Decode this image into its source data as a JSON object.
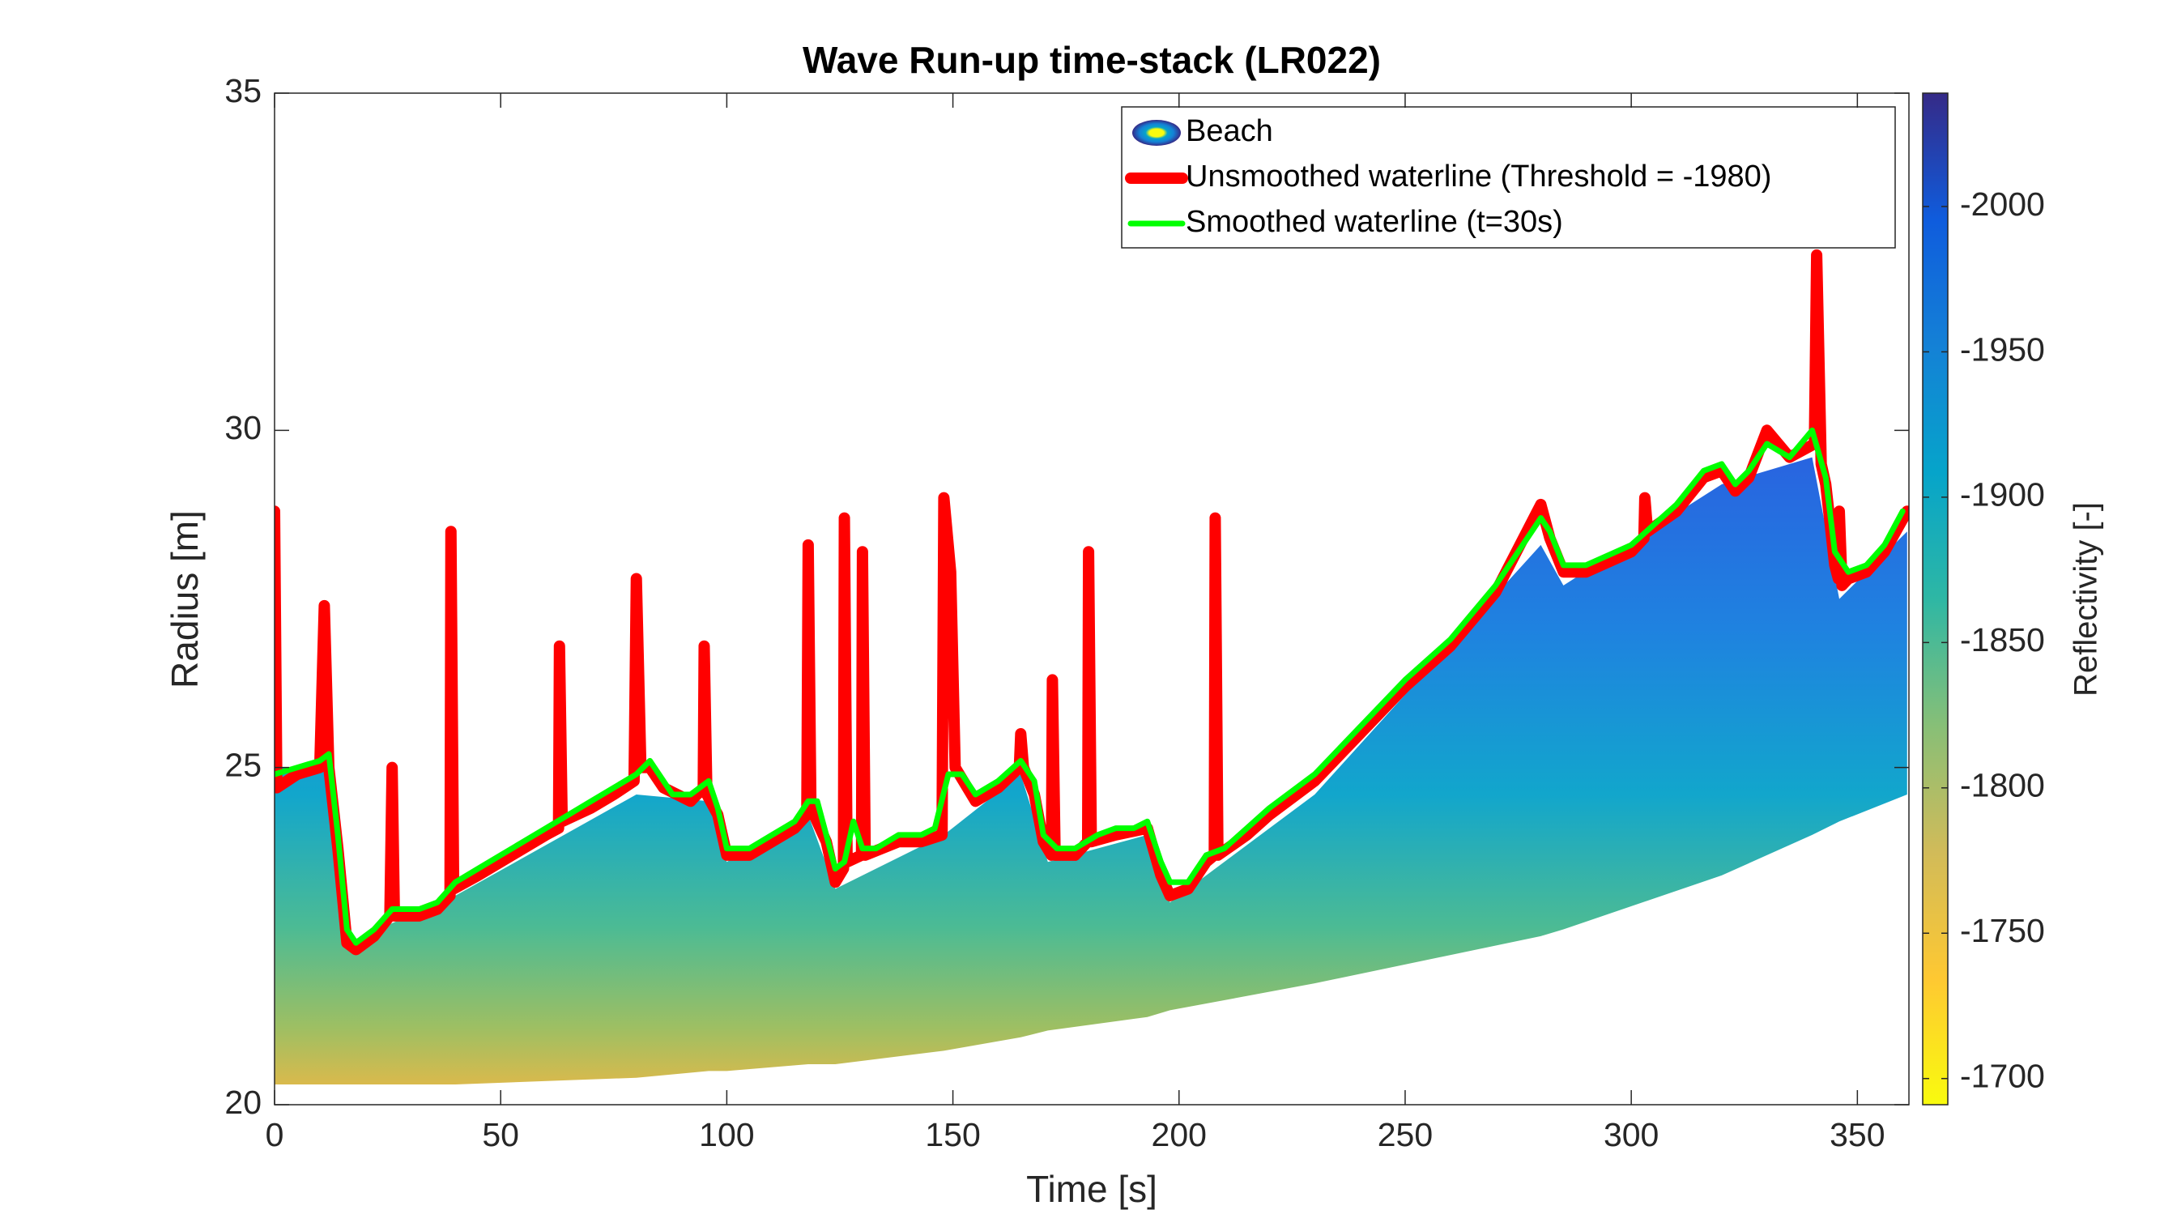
{
  "chart_data": {
    "type": "line",
    "title": "Wave Run-up time-stack (LR022)",
    "xlabel": "Time [s]",
    "ylabel": "Radius [m]",
    "xlim": [
      0,
      361.4
    ],
    "ylim": [
      20,
      35
    ],
    "xticks": [
      0,
      50,
      100,
      150,
      200,
      250,
      300,
      350
    ],
    "yticks": [
      20,
      25,
      30,
      35
    ],
    "legend": "upper right",
    "series": [
      {
        "name": "Beach",
        "type": "area",
        "color": "#2a64dc",
        "x": [
          0,
          12,
          16,
          40,
          80,
          96,
          100,
          118,
          124,
          148,
          165,
          171,
          193,
          198,
          230,
          280,
          285,
          320,
          340,
          346,
          361
        ],
        "upper": [
          25.0,
          25.0,
          22.4,
          23.1,
          24.6,
          24.5,
          23.6,
          24.3,
          23.2,
          24.0,
          24.9,
          23.6,
          24.0,
          23.0,
          24.6,
          28.3,
          27.7,
          29.2,
          29.6,
          27.5,
          28.5
        ],
        "lower": [
          20.3,
          20.3,
          20.3,
          20.3,
          20.4,
          20.5,
          20.5,
          20.6,
          20.6,
          20.8,
          21.0,
          21.1,
          21.3,
          21.4,
          21.8,
          22.5,
          22.6,
          23.4,
          24.0,
          24.2,
          24.6
        ]
      },
      {
        "name": "Unsmoothed waterline (Threshold = -1980)",
        "type": "line",
        "color": "#ff0000",
        "width": 14,
        "x": [
          0,
          0.5,
          5,
          10,
          11,
          12,
          14,
          16,
          18,
          22,
          25.5,
          26,
          26.5,
          32,
          36,
          38.8,
          39,
          39.6,
          45,
          50,
          55,
          60,
          62.8,
          63,
          63.6,
          70,
          75,
          79.5,
          80,
          81,
          83,
          86,
          92,
          94.8,
          95,
          95.6,
          98,
          100,
          105,
          110,
          115,
          117.7,
          118,
          118.6,
          122,
          124,
          125.8,
          126,
          126.6,
          129.8,
          130,
          130.6,
          138,
          143,
          147.6,
          148,
          149.5,
          150.5,
          155,
          160,
          164.7,
          165,
          165.6,
          168,
          170,
          171.8,
          172,
          172.6,
          177,
          179.8,
          180,
          180.6,
          186,
          193,
          196,
          198,
          202,
          206,
          207.8,
          208,
          208.6,
          215,
          220,
          230,
          240,
          250,
          260,
          270,
          280,
          282,
          285,
          290,
          300,
          302.8,
          303,
          303.6,
          310,
          316,
          320,
          323,
          326,
          330,
          335,
          340.5,
          341,
          342,
          343,
          345,
          345.8,
          346,
          346.6,
          348,
          352,
          356,
          361
        ],
        "y": [
          28.8,
          24.7,
          24.9,
          25.0,
          27.4,
          25.0,
          23.8,
          22.4,
          22.3,
          22.5,
          22.8,
          25.0,
          22.8,
          22.8,
          22.9,
          23.1,
          28.5,
          23.2,
          23.4,
          23.6,
          23.8,
          24.0,
          24.1,
          26.8,
          24.2,
          24.4,
          24.6,
          24.8,
          27.8,
          25.0,
          25.0,
          24.7,
          24.5,
          24.7,
          26.8,
          24.6,
          24.3,
          23.7,
          23.7,
          23.9,
          24.1,
          24.3,
          28.3,
          24.4,
          23.9,
          23.3,
          23.5,
          28.7,
          23.6,
          23.7,
          28.2,
          23.7,
          23.9,
          23.9,
          24.0,
          29.0,
          27.9,
          25.0,
          24.5,
          24.7,
          25.0,
          25.5,
          25.0,
          24.6,
          23.9,
          23.7,
          26.3,
          23.7,
          23.7,
          23.9,
          28.2,
          23.9,
          24.0,
          24.1,
          23.4,
          23.1,
          23.2,
          23.6,
          23.7,
          28.7,
          23.7,
          24.0,
          24.3,
          24.8,
          25.5,
          26.2,
          26.8,
          27.6,
          28.9,
          28.4,
          27.9,
          27.9,
          28.2,
          28.4,
          29.0,
          28.5,
          28.8,
          29.3,
          29.4,
          29.1,
          29.3,
          30.0,
          29.6,
          29.8,
          32.6,
          29.5,
          29.2,
          28.0,
          27.8,
          28.8,
          27.7,
          27.8,
          27.9,
          28.2,
          28.8
        ]
      },
      {
        "name": "Smoothed waterline (t=30s)",
        "type": "line",
        "color": "#00ff00",
        "width": 7,
        "x": [
          0,
          5,
          10,
          12,
          14,
          16,
          18,
          22,
          26,
          28,
          32,
          36,
          40,
          45,
          50,
          55,
          60,
          65,
          70,
          75,
          80,
          83,
          86,
          88,
          92,
          96,
          98,
          100,
          105,
          110,
          115,
          118,
          120,
          122,
          124,
          126,
          128,
          130,
          133,
          138,
          143,
          146,
          149,
          152,
          155,
          160,
          165,
          168,
          170,
          173,
          177,
          182,
          186,
          190,
          193,
          196,
          198,
          202,
          206,
          210,
          215,
          220,
          230,
          240,
          250,
          260,
          270,
          280,
          282,
          285,
          290,
          300,
          310,
          316,
          320,
          323,
          326,
          330,
          335,
          340,
          343,
          345,
          348,
          352,
          356,
          360
        ],
        "y": [
          24.9,
          25.0,
          25.1,
          25.2,
          24.0,
          22.6,
          22.4,
          22.6,
          22.9,
          22.9,
          22.9,
          23.0,
          23.3,
          23.5,
          23.7,
          23.9,
          24.1,
          24.3,
          24.5,
          24.7,
          24.9,
          25.1,
          24.8,
          24.6,
          24.6,
          24.8,
          24.4,
          23.8,
          23.8,
          24.0,
          24.2,
          24.5,
          24.5,
          24.0,
          23.5,
          23.6,
          24.2,
          23.8,
          23.8,
          24.0,
          24.0,
          24.1,
          24.9,
          24.9,
          24.6,
          24.8,
          25.1,
          24.8,
          24.0,
          23.8,
          23.8,
          24.0,
          24.1,
          24.1,
          24.2,
          23.6,
          23.3,
          23.3,
          23.7,
          23.8,
          24.1,
          24.4,
          24.9,
          25.6,
          26.3,
          26.9,
          27.7,
          28.7,
          28.5,
          28.0,
          28.0,
          28.3,
          28.9,
          29.4,
          29.5,
          29.2,
          29.4,
          29.8,
          29.6,
          30.0,
          29.3,
          28.2,
          27.9,
          28.0,
          28.3,
          28.8
        ]
      }
    ],
    "colorbar": {
      "label": "Reflectivity [-]",
      "clim": [
        -2039,
        -1691
      ],
      "reverse": true,
      "ticks": [
        -2000,
        -1950,
        -1900,
        -1850,
        -1800,
        -1750,
        -1700
      ],
      "colormap": [
        "#352a87",
        "#0f5cdd",
        "#1481d6",
        "#06a4ca",
        "#2eb7a4",
        "#87bf77",
        "#d1bb59",
        "#fec832",
        "#f9fb0e"
      ]
    }
  }
}
